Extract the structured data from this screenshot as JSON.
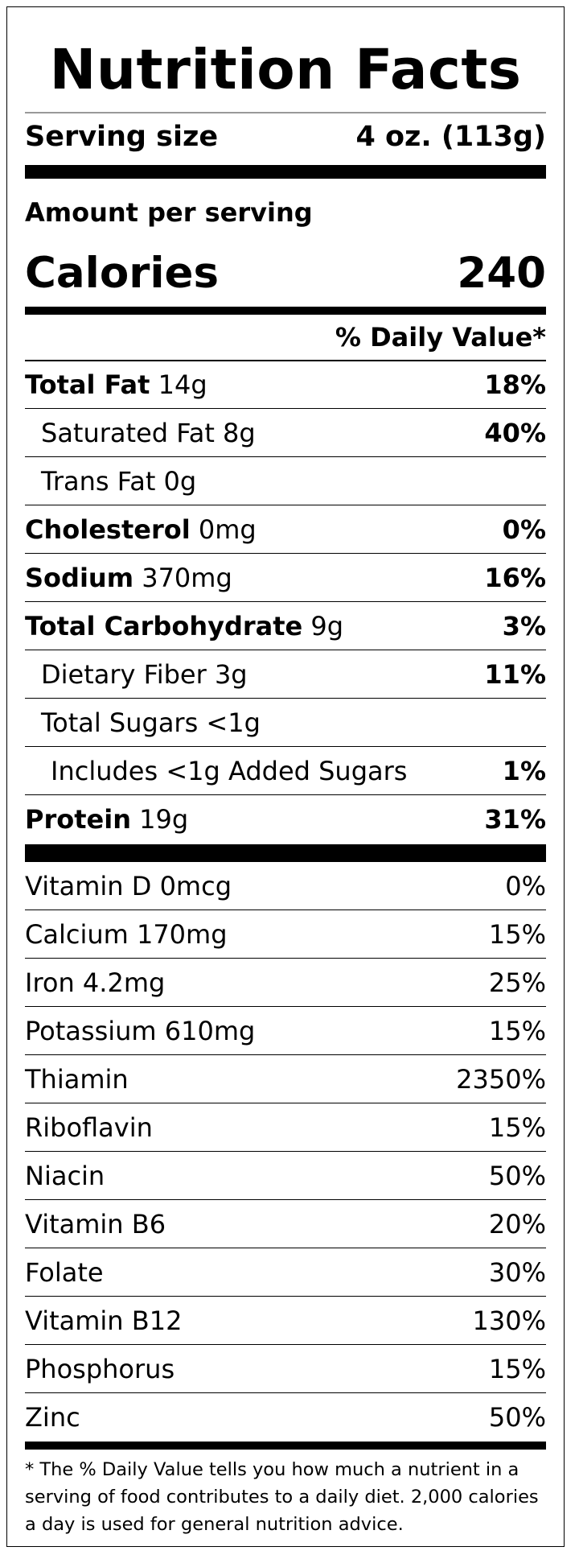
{
  "title": "Nutrition Facts",
  "serving": {
    "label": "Serving size",
    "value": "4 oz. (113g)"
  },
  "amount_per_serving": "Amount per serving",
  "calories": {
    "label": "Calories",
    "value": "240"
  },
  "daily_value_header": "% Daily Value*",
  "nutrients": [
    {
      "name": "Total Fat",
      "amount": " 14g",
      "dv": "18%"
    },
    {
      "name": "Saturated Fat 8g",
      "amount": "",
      "dv": "40%"
    },
    {
      "name": "Trans Fat 0g",
      "amount": "",
      "dv": ""
    },
    {
      "name": "Cholesterol",
      "amount": " 0mg",
      "dv": "0%"
    },
    {
      "name": "Sodium",
      "amount": " 370mg",
      "dv": "16%"
    },
    {
      "name": "Total Carbohydrate",
      "amount": " 9g",
      "dv": "3%"
    },
    {
      "name": "Dietary Fiber 3g",
      "amount": "",
      "dv": "11%"
    },
    {
      "name": "Total Sugars <1g",
      "amount": "",
      "dv": ""
    },
    {
      "name": "Includes <1g Added Sugars",
      "amount": "",
      "dv": "1%"
    },
    {
      "name": "Protein",
      "amount": " 19g",
      "dv": "31%"
    }
  ],
  "vitamins": [
    {
      "name": "Vitamin D 0mcg",
      "dv": "0%"
    },
    {
      "name": "Calcium 170mg",
      "dv": "15%"
    },
    {
      "name": "Iron 4.2mg",
      "dv": "25%"
    },
    {
      "name": "Potassium 610mg",
      "dv": "15%"
    },
    {
      "name": "Thiamin",
      "dv": "2350%"
    },
    {
      "name": "Riboflavin",
      "dv": "15%"
    },
    {
      "name": "Niacin",
      "dv": "50%"
    },
    {
      "name": "Vitamin B6",
      "dv": "20%"
    },
    {
      "name": "Folate",
      "dv": "30%"
    },
    {
      "name": "Vitamin B12",
      "dv": "130%"
    },
    {
      "name": "Phosphorus",
      "dv": "15%"
    },
    {
      "name": "Zinc",
      "dv": "50%"
    }
  ],
  "footnote": "* The % Daily Value tells you how much a nutrient in a serving of food contributes to a daily diet. 2,000 calories a day is used for general nutrition advice."
}
